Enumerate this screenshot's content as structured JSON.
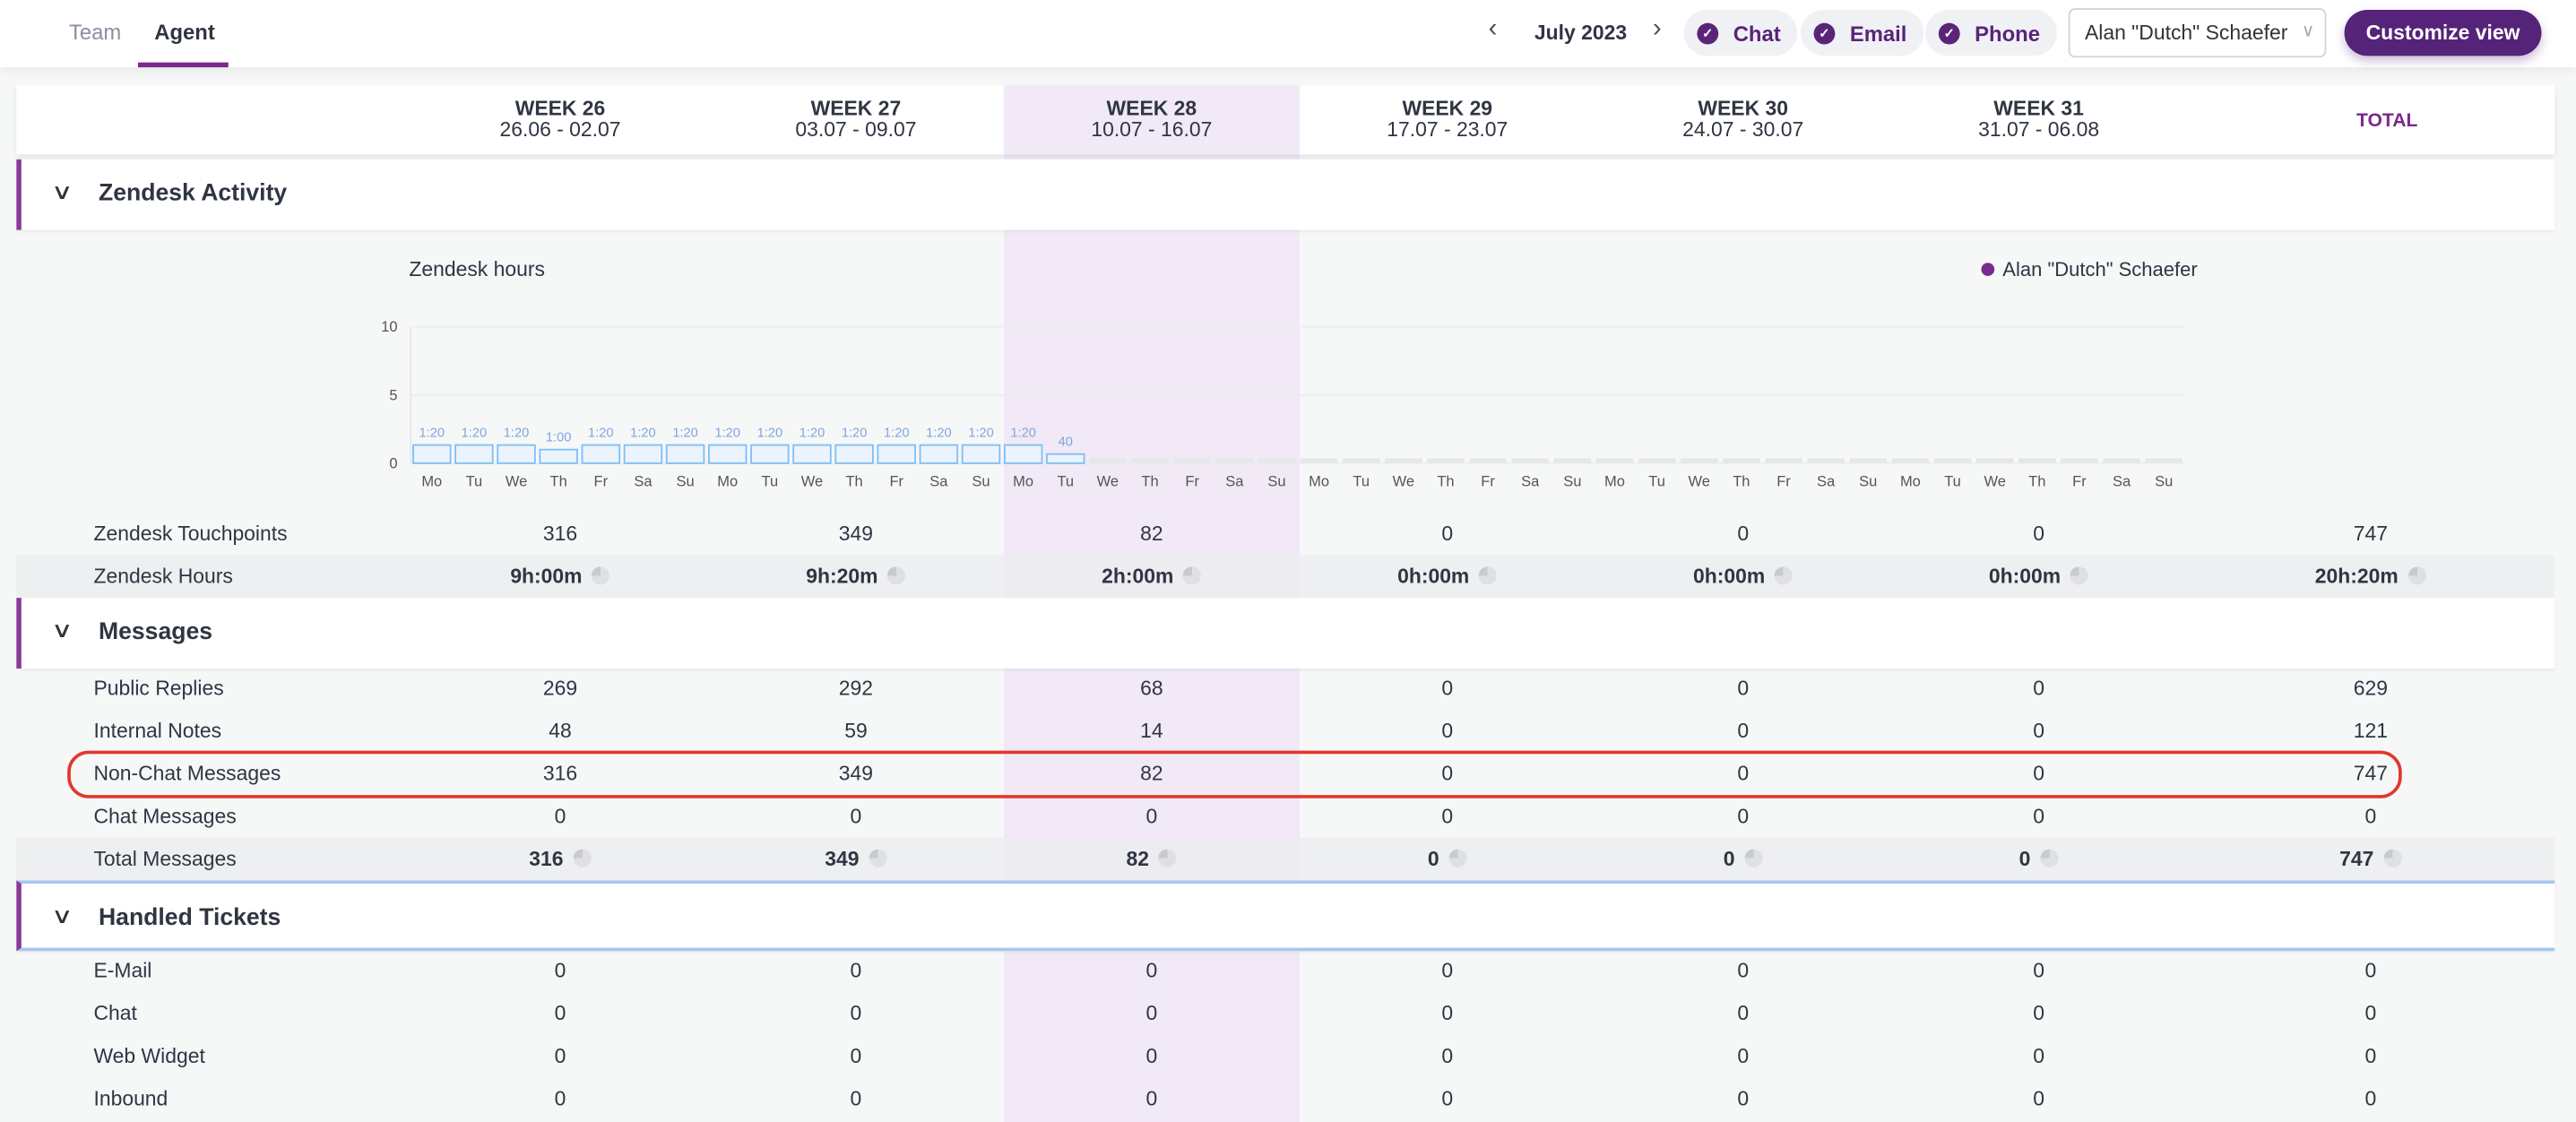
{
  "tabs": [
    {
      "label": "Team",
      "active": false
    },
    {
      "label": "Agent",
      "active": true
    }
  ],
  "header": {
    "month": "July 2023",
    "filters": [
      {
        "label": "Chat",
        "checked": true
      },
      {
        "label": "Email",
        "checked": true
      },
      {
        "label": "Phone",
        "checked": true
      }
    ],
    "agent_select": "Alan \"Dutch\" Schaefer",
    "customize_label": "Customize view"
  },
  "weeks": [
    {
      "label": "WEEK 26",
      "range": "26.06 - 02.07"
    },
    {
      "label": "WEEK 27",
      "range": "03.07 - 09.07"
    },
    {
      "label": "WEEK 28",
      "range": "10.07 - 16.07",
      "highlighted": true
    },
    {
      "label": "WEEK 29",
      "range": "17.07 - 23.07"
    },
    {
      "label": "WEEK 30",
      "range": "24.07 - 30.07"
    },
    {
      "label": "WEEK 31",
      "range": "31.07 - 06.08"
    }
  ],
  "total_label": "TOTAL",
  "sections": [
    {
      "title": "Zendesk Activity",
      "rows": [
        {
          "label": "Zendesk Touchpoints",
          "values": [
            "316",
            "349",
            "82",
            "0",
            "0",
            "0",
            "747"
          ]
        },
        {
          "label": "Zendesk Hours",
          "values": [
            "9h:00m",
            "9h:20m",
            "2h:00m",
            "0h:00m",
            "0h:00m",
            "0h:00m",
            "20h:20m"
          ],
          "bold": true,
          "pie": true
        }
      ]
    },
    {
      "title": "Messages",
      "rows": [
        {
          "label": "Public Replies",
          "values": [
            "269",
            "292",
            "68",
            "0",
            "0",
            "0",
            "629"
          ]
        },
        {
          "label": "Internal Notes",
          "values": [
            "48",
            "59",
            "14",
            "0",
            "0",
            "0",
            "121"
          ]
        },
        {
          "label": "Non-Chat Messages",
          "values": [
            "316",
            "349",
            "82",
            "0",
            "0",
            "0",
            "747"
          ],
          "highlighted": true
        },
        {
          "label": "Chat Messages",
          "values": [
            "0",
            "0",
            "0",
            "0",
            "0",
            "0",
            "0"
          ]
        },
        {
          "label": "Total Messages",
          "values": [
            "316",
            "349",
            "82",
            "0",
            "0",
            "0",
            "747"
          ],
          "bold": true,
          "pie": true
        }
      ]
    },
    {
      "title": "Handled Tickets",
      "rows": [
        {
          "label": "E-Mail",
          "values": [
            "0",
            "0",
            "0",
            "0",
            "0",
            "0",
            "0"
          ]
        },
        {
          "label": "Chat",
          "values": [
            "0",
            "0",
            "0",
            "0",
            "0",
            "0",
            "0"
          ]
        },
        {
          "label": "Web Widget",
          "values": [
            "0",
            "0",
            "0",
            "0",
            "0",
            "0",
            "0"
          ]
        },
        {
          "label": "Inbound",
          "values": [
            "0",
            "0",
            "0",
            "0",
            "0",
            "0",
            "0"
          ]
        }
      ]
    }
  ],
  "chart_data": {
    "type": "bar",
    "title": "Zendesk hours",
    "legend": [
      "Alan \"Dutch\" Schaefer"
    ],
    "legend_position": "top-right",
    "ylim": [
      0,
      10
    ],
    "yticks": [
      "0",
      "5",
      "10"
    ],
    "categories": [
      "Mo",
      "Tu",
      "We",
      "Th",
      "Fr",
      "Sa",
      "Su",
      "Mo",
      "Tu",
      "We",
      "Th",
      "Fr",
      "Sa",
      "Su",
      "Mo",
      "Tu",
      "We",
      "Th",
      "Fr",
      "Sa",
      "Su",
      "Mo",
      "Tu",
      "We",
      "Th",
      "Fr",
      "Sa",
      "Su",
      "Mo",
      "Tu",
      "We",
      "Th",
      "Fr",
      "Sa",
      "Su",
      "Mo",
      "Tu",
      "We",
      "Th",
      "Fr",
      "Sa",
      "Su"
    ],
    "values": [
      1.333,
      1.333,
      1.333,
      1.0,
      1.333,
      1.333,
      1.333,
      1.333,
      1.333,
      1.333,
      1.333,
      1.333,
      1.333,
      1.333,
      1.333,
      0.667,
      0,
      0,
      0,
      0,
      0,
      0,
      0,
      0,
      0,
      0,
      0,
      0,
      0,
      0,
      0,
      0,
      0,
      0,
      0,
      0,
      0,
      0,
      0,
      0,
      0,
      0
    ],
    "labels": [
      "1:20",
      "1:20",
      "1:20",
      "1:00",
      "1:20",
      "1:20",
      "1:20",
      "1:20",
      "1:20",
      "1:20",
      "1:20",
      "1:20",
      "1:20",
      "1:20",
      "1:20",
      "40",
      "",
      "",
      "",
      "",
      "",
      "",
      "",
      "",
      "",
      "",
      "",
      "",
      "",
      "",
      "",
      "",
      "",
      "",
      "",
      "",
      "",
      "",
      "",
      "",
      "",
      ""
    ],
    "colors": {
      "bar_fill": "#ebf3fd",
      "bar_stroke": "#7ec0f5",
      "label": "#7fa6e0",
      "empty": "#e6e7ea"
    }
  }
}
